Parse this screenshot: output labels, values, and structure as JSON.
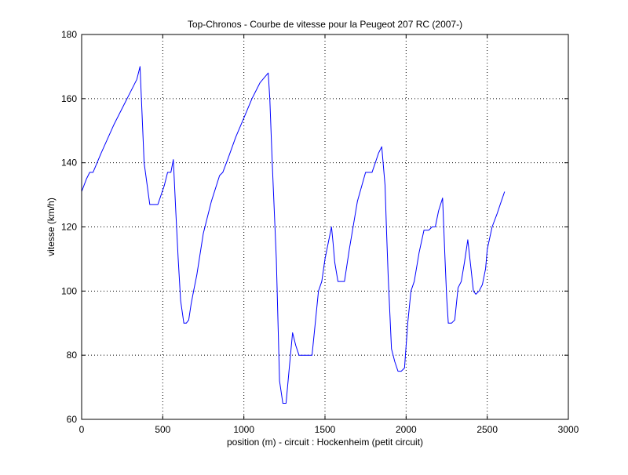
{
  "chart_data": {
    "type": "line",
    "title": "Top-Chronos - Courbe de vitesse pour la Peugeot 207 RC (2007-)",
    "xlabel": "position (m) - circuit : Hockenheim (petit circuit)",
    "ylabel": "vitesse (km/h)",
    "xlim": [
      0,
      3000
    ],
    "ylim": [
      60,
      180
    ],
    "xticks": [
      0,
      500,
      1000,
      1500,
      2000,
      2500,
      3000
    ],
    "yticks": [
      60,
      80,
      100,
      120,
      140,
      160,
      180
    ],
    "grid": true,
    "legend": "none",
    "series": [
      {
        "color": "#0000ff",
        "x": [
          0,
          30,
          50,
          70,
          120,
          200,
          280,
          340,
          360,
          385,
          420,
          470,
          510,
          530,
          550,
          565,
          580,
          595,
          610,
          630,
          645,
          660,
          675,
          690,
          710,
          750,
          800,
          850,
          870,
          900,
          950,
          1000,
          1050,
          1100,
          1150,
          1160,
          1175,
          1200,
          1220,
          1240,
          1260,
          1280,
          1300,
          1320,
          1340,
          1360,
          1380,
          1420,
          1440,
          1460,
          1480,
          1500,
          1520,
          1540,
          1550,
          1560,
          1580,
          1600,
          1620,
          1650,
          1700,
          1750,
          1790,
          1810,
          1830,
          1850,
          1870,
          1880,
          1890,
          1910,
          1930,
          1950,
          1970,
          1990,
          2010,
          2030,
          2050,
          2080,
          2110,
          2140,
          2160,
          2180,
          2200,
          2225,
          2240,
          2250,
          2260,
          2280,
          2300,
          2320,
          2340,
          2360,
          2380,
          2400,
          2415,
          2430,
          2450,
          2470,
          2490,
          2500,
          2530,
          2560,
          2580,
          2607
        ],
        "y": [
          131,
          135,
          137,
          137,
          143,
          152,
          160,
          166,
          170,
          140,
          127,
          127,
          133,
          137,
          137,
          141,
          125,
          110,
          97,
          90,
          90,
          91,
          96,
          100,
          105,
          118,
          128,
          136,
          137,
          141,
          148,
          154,
          160,
          165,
          168,
          160,
          140,
          110,
          72,
          65,
          65,
          76,
          87,
          83,
          80,
          80,
          80,
          80,
          90,
          100,
          103,
          110,
          115,
          120,
          115,
          109,
          103,
          103,
          103,
          113,
          128,
          137,
          137,
          140,
          143,
          145,
          133,
          118,
          104,
          82,
          78,
          75,
          75,
          76,
          90,
          100,
          103,
          112,
          119,
          119,
          120,
          120,
          125,
          129,
          110,
          98,
          90,
          90,
          91,
          101,
          103,
          109,
          116,
          107,
          100,
          99,
          100,
          102,
          107,
          113,
          120,
          124,
          127,
          131
        ]
      }
    ]
  }
}
